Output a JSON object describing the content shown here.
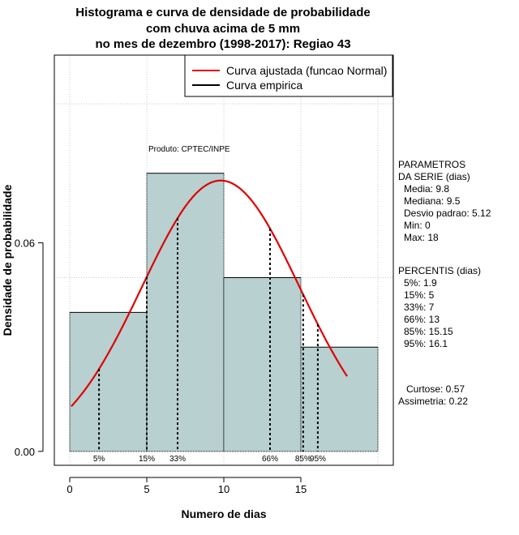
{
  "chart_data": {
    "type": "bar",
    "title_lines": [
      "Histograma e curva de densidade de probabilidade",
      "com chuva acima de 5 mm",
      "no mes de dezembro (1998-2017): Regiao 43"
    ],
    "xlabel": "Numero de dias",
    "ylabel": "Densidade de probabilidade",
    "xlim": [
      -1,
      21
    ],
    "ylim": [
      -0.004,
      0.114
    ],
    "x_ticks": [
      0,
      5,
      10,
      15
    ],
    "y_ticks": [
      0.0,
      0.06
    ],
    "y_tick_labels": [
      "0.00",
      "0.06"
    ],
    "grid": true,
    "grid_x": [
      0,
      5,
      10,
      15,
      20
    ],
    "grid_y": [
      0.05,
      0.1
    ],
    "histogram": {
      "bins": [
        [
          0,
          5
        ],
        [
          5,
          10
        ],
        [
          10,
          15
        ],
        [
          15,
          20
        ]
      ],
      "density": [
        0.04,
        0.08,
        0.05,
        0.03
      ],
      "fill_color": "#b8d0d0"
    },
    "normal_curve": {
      "mean": 9.8,
      "sd": 5.12,
      "x_start": 0.1,
      "x_end": 18,
      "color": "#e00000"
    },
    "percentiles": [
      {
        "label": "5%",
        "x": 1.9
      },
      {
        "label": "15%",
        "x": 5
      },
      {
        "label": "33%",
        "x": 7
      },
      {
        "label": "66%",
        "x": 13
      },
      {
        "label": "85%",
        "x": 15.15
      },
      {
        "label": "95%",
        "x": 16.1
      }
    ],
    "legend": {
      "position": "top-right",
      "entries": [
        {
          "label": "Curva ajustada (funcao Normal)",
          "color": "#e00000"
        },
        {
          "label": "Curva empirica",
          "color": "#000000"
        }
      ]
    },
    "annotation": "Produto: CPTEC/INPE",
    "side_panel": {
      "parametros": [
        "PARAMETROS",
        "DA SERIE (dias)",
        "Media: 9.8",
        "Mediana: 9.5",
        "Desvio padrao: 5.12",
        "Min: 0",
        "Max: 18"
      ],
      "percentis": [
        "PERCENTIS (dias)",
        "5%: 1.9",
        "15%: 5",
        "33%: 7",
        "66%: 13",
        "85%: 15.15",
        "95%: 16.1"
      ],
      "curtose": "Curtose: 0.57",
      "assimetria": "Assimetria: 0.22"
    }
  }
}
